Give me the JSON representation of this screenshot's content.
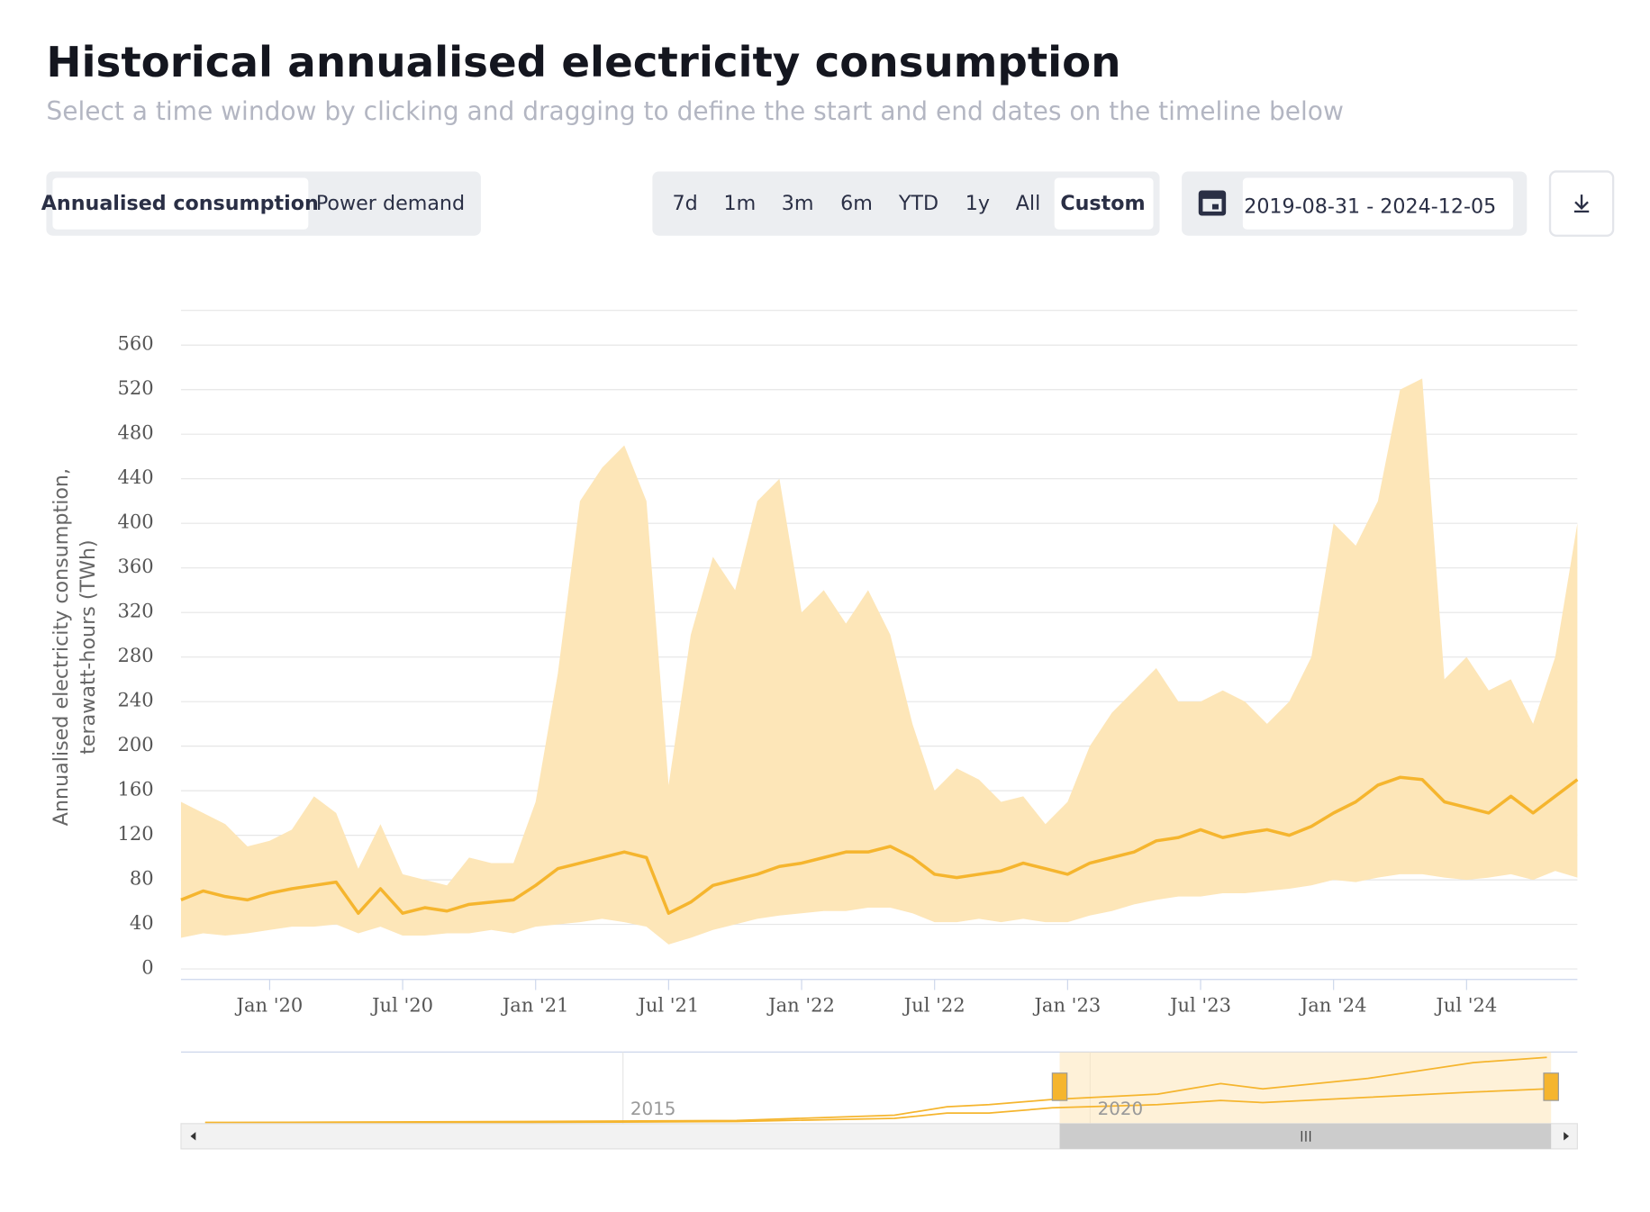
{
  "header": {
    "title": "Historical annualised electricity consumption",
    "subtitle": "Select a time window by clicking and dragging to define the start and end dates on the timeline below"
  },
  "tabs": [
    "Annualised consumption",
    "Power demand"
  ],
  "ranges": [
    "7d",
    "1m",
    "3m",
    "6m",
    "YTD",
    "1y",
    "All",
    "Custom"
  ],
  "date_range": "2019-08-31 - 2024-12-05",
  "navigator": {
    "labels": [
      "2015",
      "2020"
    ]
  },
  "chart_data": {
    "type": "area-band-line",
    "ylabel": [
      "Annualised electricity consumption,",
      "terawatt-hours (TWh)"
    ],
    "x": [
      "2019-09",
      "2019-10",
      "2019-11",
      "2019-12",
      "2020-01",
      "2020-02",
      "2020-03",
      "2020-04",
      "2020-05",
      "2020-06",
      "2020-07",
      "2020-08",
      "2020-09",
      "2020-10",
      "2020-11",
      "2020-12",
      "2021-01",
      "2021-02",
      "2021-03",
      "2021-04",
      "2021-05",
      "2021-06",
      "2021-07",
      "2021-08",
      "2021-09",
      "2021-10",
      "2021-11",
      "2021-12",
      "2022-01",
      "2022-02",
      "2022-03",
      "2022-04",
      "2022-05",
      "2022-06",
      "2022-07",
      "2022-08",
      "2022-09",
      "2022-10",
      "2022-11",
      "2022-12",
      "2023-01",
      "2023-02",
      "2023-03",
      "2023-04",
      "2023-05",
      "2023-06",
      "2023-07",
      "2023-08",
      "2023-09",
      "2023-10",
      "2023-11",
      "2023-12",
      "2024-01",
      "2024-02",
      "2024-03",
      "2024-04",
      "2024-05",
      "2024-06",
      "2024-07",
      "2024-08",
      "2024-09",
      "2024-10",
      "2024-11",
      "2024-12"
    ],
    "line": {
      "color": "#f5b52e",
      "values": [
        62,
        70,
        65,
        62,
        68,
        72,
        75,
        78,
        50,
        72,
        50,
        55,
        52,
        58,
        60,
        62,
        75,
        90,
        95,
        100,
        105,
        100,
        50,
        60,
        75,
        80,
        85,
        92,
        95,
        100,
        105,
        105,
        110,
        100,
        85,
        82,
        85,
        88,
        95,
        90,
        85,
        95,
        100,
        105,
        115,
        118,
        125,
        118,
        122,
        125,
        120,
        128,
        140,
        150,
        165,
        172,
        170,
        150,
        145,
        140,
        155,
        140,
        155,
        170
      ]
    },
    "band": {
      "color": "#fde6b8",
      "high": [
        150,
        140,
        130,
        110,
        115,
        125,
        155,
        140,
        90,
        130,
        85,
        80,
        75,
        100,
        95,
        95,
        150,
        265,
        420,
        450,
        470,
        420,
        165,
        300,
        370,
        340,
        420,
        440,
        320,
        340,
        310,
        340,
        300,
        220,
        160,
        180,
        170,
        150,
        155,
        130,
        150,
        200,
        230,
        250,
        270,
        240,
        240,
        250,
        240,
        220,
        240,
        280,
        400,
        380,
        420,
        520,
        530,
        260,
        280,
        250,
        260,
        220,
        280,
        400
      ],
      "low": [
        28,
        32,
        30,
        32,
        35,
        38,
        38,
        40,
        32,
        38,
        30,
        30,
        32,
        32,
        35,
        32,
        38,
        40,
        42,
        45,
        42,
        38,
        22,
        28,
        35,
        40,
        45,
        48,
        50,
        52,
        52,
        55,
        55,
        50,
        42,
        42,
        45,
        42,
        45,
        42,
        42,
        48,
        52,
        58,
        62,
        65,
        65,
        68,
        68,
        70,
        72,
        75,
        80,
        78,
        82,
        85,
        85,
        82,
        80,
        82,
        85,
        80,
        88,
        82
      ]
    },
    "xlim": [
      "2019-09",
      "2024-12"
    ],
    "xticks": [
      {
        "value": "2020-01",
        "label": "Jan '20"
      },
      {
        "value": "2020-07",
        "label": "Jul '20"
      },
      {
        "value": "2021-01",
        "label": "Jan '21"
      },
      {
        "value": "2021-07",
        "label": "Jul '21"
      },
      {
        "value": "2022-01",
        "label": "Jan '22"
      },
      {
        "value": "2022-07",
        "label": "Jul '22"
      },
      {
        "value": "2023-01",
        "label": "Jan '23"
      },
      {
        "value": "2023-07",
        "label": "Jul '23"
      },
      {
        "value": "2024-01",
        "label": "Jan '24"
      },
      {
        "value": "2024-07",
        "label": "Jul '24"
      }
    ],
    "ylim": [
      0,
      560
    ],
    "yticks": [
      0,
      40,
      80,
      120,
      160,
      200,
      240,
      280,
      320,
      360,
      400,
      440,
      480,
      520,
      560
    ],
    "grid": true
  }
}
